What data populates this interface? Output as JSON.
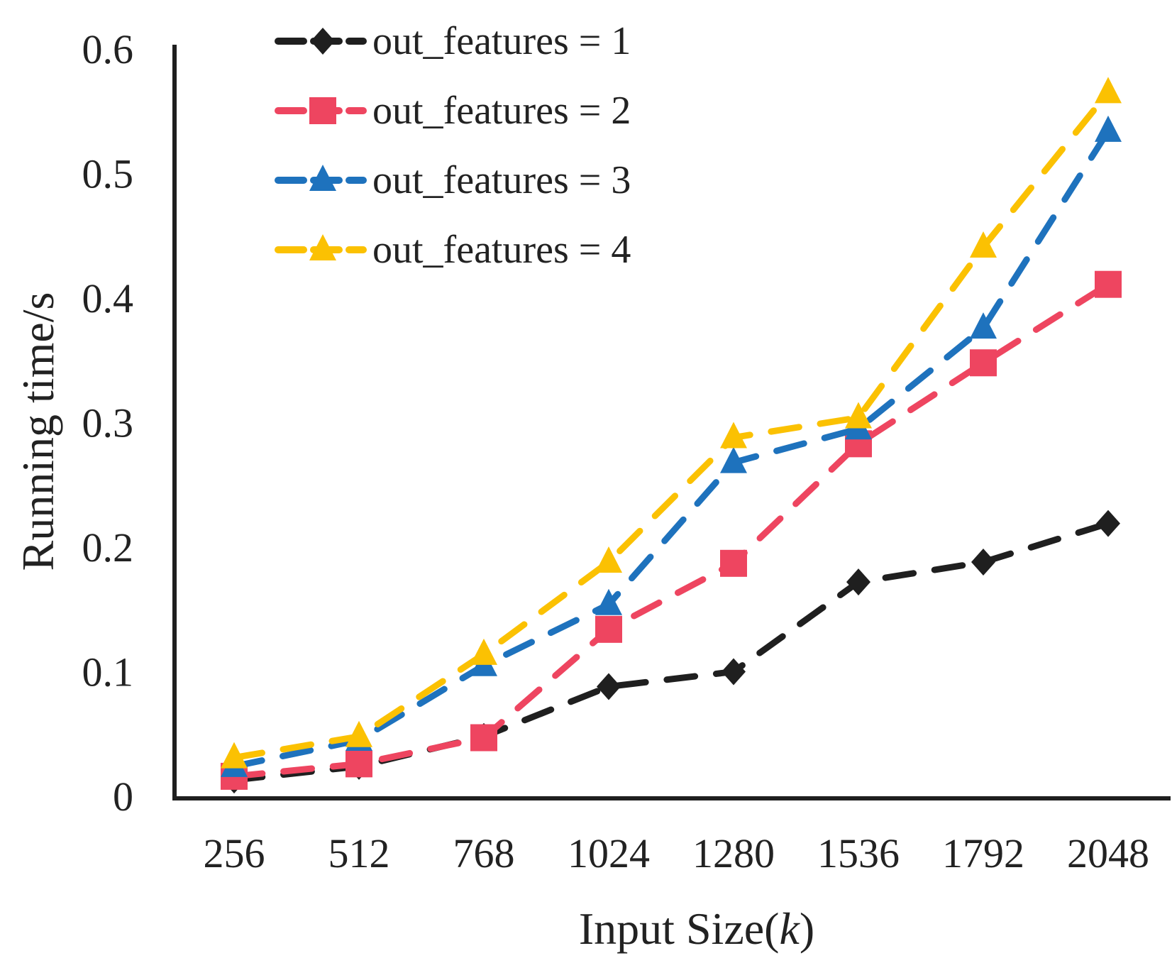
{
  "chart_data": {
    "type": "line",
    "title": "",
    "xlabel_main": "Input Size(",
    "xlabel_var": "k",
    "xlabel_close": ")",
    "ylabel": "Running time/s",
    "categories": [
      "256",
      "512",
      "768",
      "1024",
      "1280",
      "1536",
      "1792",
      "2048"
    ],
    "ylim": [
      0,
      0.6
    ],
    "yticks": [
      0,
      0.1,
      0.2,
      0.3,
      0.4,
      0.5,
      0.6
    ],
    "ytick_labels": [
      "0",
      "0.1",
      "0.2",
      "0.3",
      "0.4",
      "0.5",
      "0.6"
    ],
    "grid": false,
    "legend_position": "top-left",
    "series": [
      {
        "name": "out_features = 1",
        "color": "#1f1f1f",
        "marker": "diamond",
        "values": [
          0.013,
          0.024,
          0.048,
          0.088,
          0.1,
          0.172,
          0.188,
          0.219
        ]
      },
      {
        "name": "out_features = 2",
        "color": "#ee4560",
        "marker": "square",
        "values": [
          0.016,
          0.026,
          0.047,
          0.134,
          0.187,
          0.283,
          0.348,
          0.411
        ]
      },
      {
        "name": "out_features = 3",
        "color": "#1e72bd",
        "marker": "triangle",
        "values": [
          0.024,
          0.045,
          0.105,
          0.154,
          0.268,
          0.295,
          0.376,
          0.534
        ]
      },
      {
        "name": "out_features = 4",
        "color": "#fbc102",
        "marker": "triangle",
        "values": [
          0.031,
          0.048,
          0.114,
          0.188,
          0.288,
          0.304,
          0.441,
          0.565
        ]
      }
    ]
  }
}
